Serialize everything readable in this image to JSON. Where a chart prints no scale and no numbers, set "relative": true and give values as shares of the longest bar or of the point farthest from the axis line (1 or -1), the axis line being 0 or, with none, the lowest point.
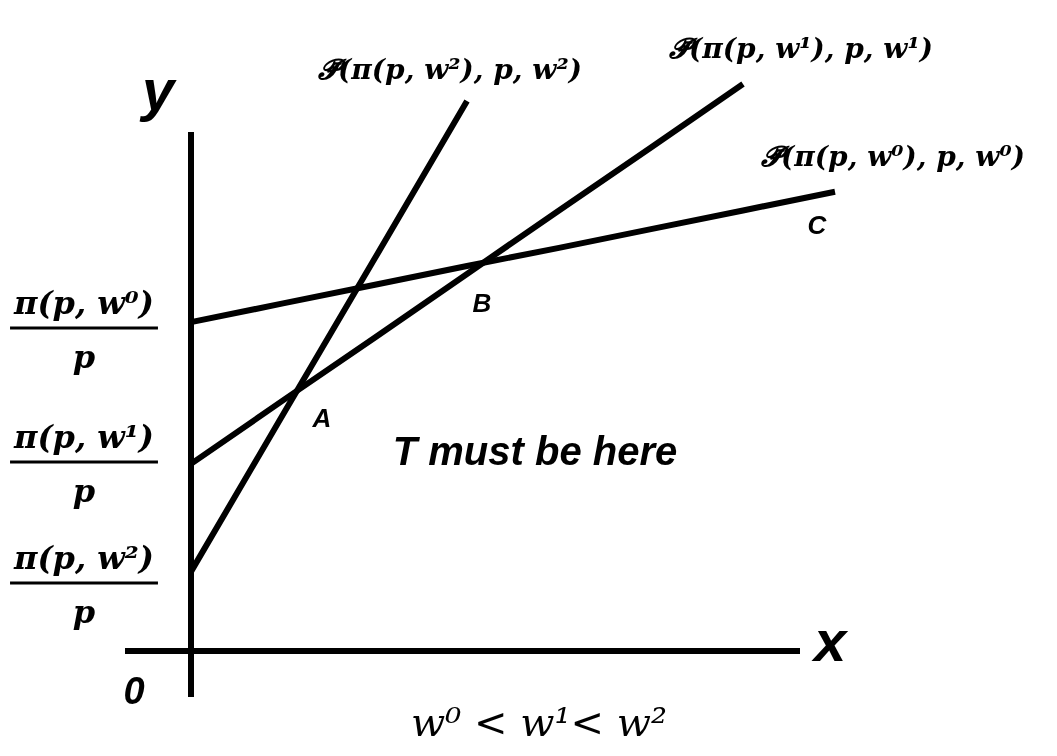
{
  "chart_data": {
    "type": "line",
    "relative": true,
    "xlabel": "x",
    "ylabel": "y",
    "categories": [
      null,
      null,
      null,
      null,
      null,
      null,
      null,
      null
    ],
    "series": [
      {
        "name": "𝓟̄(π(p, w⁰), p, w⁰)",
        "color": "#000000",
        "values": [
          0.58,
          0.613,
          0.646,
          0.679,
          0.711,
          0.744,
          0.777,
          0.81
        ]
      },
      {
        "name": "𝓟̄(π(p, w¹), p, w¹)",
        "color": "#000000",
        "values": [
          0.33,
          0.442,
          0.553,
          0.665,
          0.777,
          0.888,
          1,
          null
        ]
      },
      {
        "name": "𝓟̄(π(p, w²), p, w²)",
        "color": "#000000",
        "values": [
          0.14,
          0.417,
          0.693,
          0.97,
          null,
          null,
          null,
          null
        ]
      }
    ],
    "annotations": [
      "π(p, w⁰)\np",
      "π(p, w¹)\np",
      "π(p, w²)\np",
      "0",
      "A",
      "B",
      "C",
      "T must be here",
      "w⁰ < w¹< w²"
    ]
  }
}
